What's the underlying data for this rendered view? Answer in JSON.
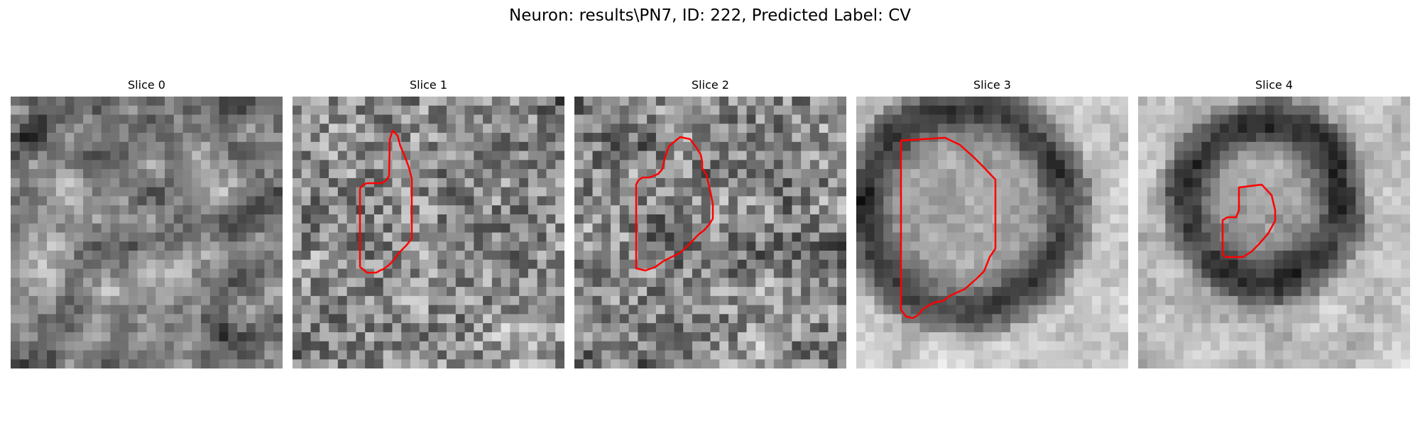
{
  "figure": {
    "title": "Neuron: results\\PN7, ID: 222, Predicted Label: CV"
  },
  "panels": [
    {
      "title": "Slice 0",
      "has_contour": false,
      "seed": 11,
      "texture": "smooth-blobs"
    },
    {
      "title": "Slice 1",
      "has_contour": true,
      "seed": 23,
      "texture": "noisy"
    },
    {
      "title": "Slice 2",
      "has_contour": true,
      "seed": 37,
      "texture": "noisy"
    },
    {
      "title": "Slice 3",
      "has_contour": true,
      "seed": 51,
      "texture": "ring-structure"
    },
    {
      "title": "Slice 4",
      "has_contour": true,
      "seed": 73,
      "texture": "ring-structure"
    }
  ],
  "colors": {
    "contour": "#ff0000",
    "background": "#ffffff"
  }
}
